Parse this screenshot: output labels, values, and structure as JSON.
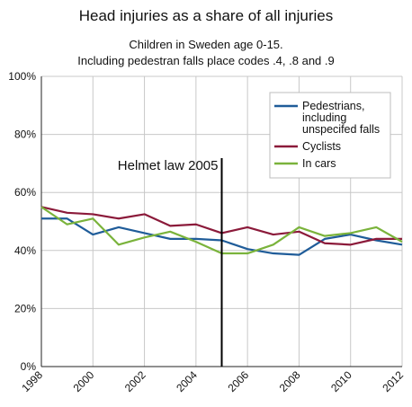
{
  "chart_data": {
    "type": "line",
    "title": "Head injuries as a share of all injuries",
    "subtitle_lines": [
      "Children in Sweden age 0-15.",
      "Including pedestran falls place codes .4, .8 and .9"
    ],
    "xlabel": "",
    "ylabel": "",
    "x": [
      1998,
      1999,
      2000,
      2001,
      2002,
      2003,
      2004,
      2005,
      2006,
      2007,
      2008,
      2009,
      2010,
      2011,
      2012
    ],
    "x_tick_labels": [
      "1998",
      "2000",
      "2002",
      "2004",
      "2006",
      "2008",
      "2010",
      "2012"
    ],
    "y_tick_labels": [
      "0%",
      "20%",
      "40%",
      "60%",
      "80%",
      "100%"
    ],
    "xlim": [
      1998,
      2012
    ],
    "ylim": [
      0,
      100
    ],
    "grid": true,
    "legend_position": "top-right",
    "series": [
      {
        "name": "Pedestrians, including unspecifed falls",
        "legend_lines": [
          "Pedestrians,",
          "including",
          "unspecifed falls"
        ],
        "color": "#1f5c99",
        "values": [
          51,
          51,
          45.5,
          48,
          46,
          44,
          44,
          43.5,
          40.5,
          39,
          38.5,
          44,
          45.5,
          43.5,
          42
        ]
      },
      {
        "name": "Cyclists",
        "legend_lines": [
          "Cyclists"
        ],
        "color": "#8b1a3a",
        "values": [
          55,
          53,
          52.5,
          51,
          52.5,
          48.5,
          49,
          46,
          48,
          45.5,
          46.5,
          42.5,
          42,
          44,
          44
        ]
      },
      {
        "name": "In cars",
        "legend_lines": [
          "In cars"
        ],
        "color": "#7ab33b",
        "values": [
          55,
          49,
          51,
          42,
          44.5,
          46.5,
          43,
          39,
          39,
          42,
          48,
          45,
          46,
          48,
          43
        ]
      }
    ],
    "annotations": [
      {
        "text": "Helmet law 2005",
        "x": 2005
      }
    ]
  }
}
